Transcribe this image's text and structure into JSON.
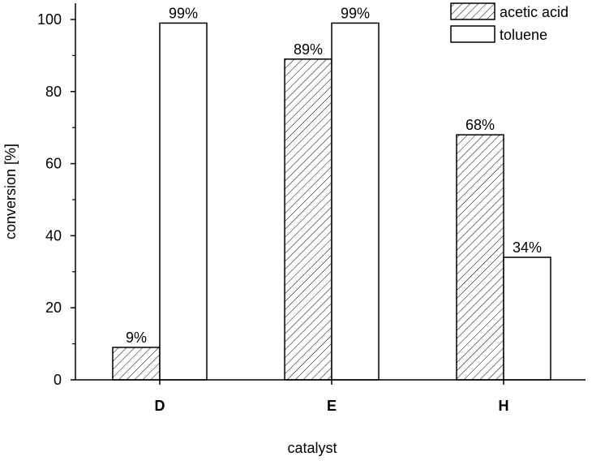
{
  "chart_data": {
    "type": "bar",
    "title": "",
    "xlabel": "catalyst",
    "ylabel": "conversion [%]",
    "categories": [
      "D",
      "E",
      "H"
    ],
    "series": [
      {
        "name": "acetic acid",
        "values": [
          9,
          89,
          68
        ],
        "labels": [
          "9%",
          "89%",
          "68%"
        ],
        "fill": "hatched"
      },
      {
        "name": "toluene",
        "values": [
          99,
          99,
          34
        ],
        "labels": [
          "99%",
          "99%",
          "34%"
        ],
        "fill": "#ffffff"
      }
    ],
    "ylim": [
      0,
      100
    ],
    "yticks": [
      0,
      20,
      40,
      60,
      80,
      100
    ],
    "yticks_minor": [
      10,
      30,
      50,
      70,
      90
    ],
    "grid": false,
    "legend_position": "top-right"
  }
}
